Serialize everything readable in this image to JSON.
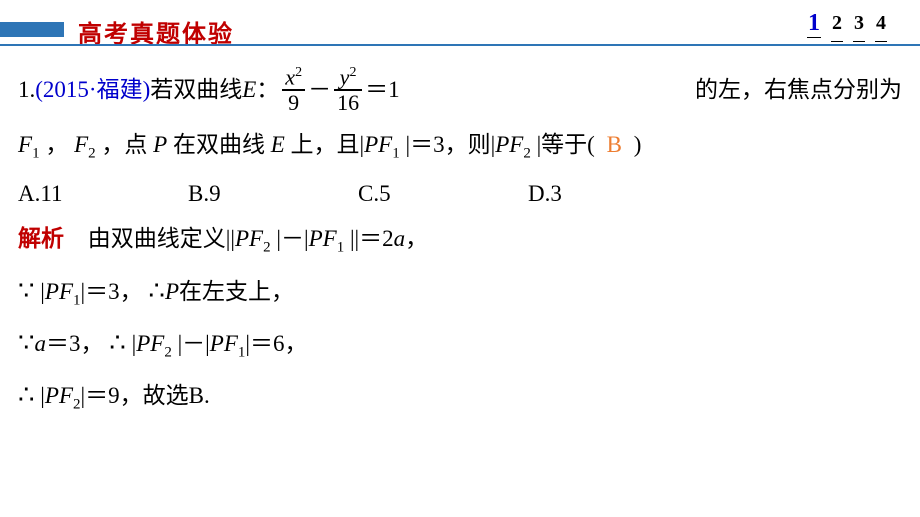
{
  "header": {
    "section_title_chars": [
      "高",
      "考",
      "真",
      "题",
      "体",
      "验"
    ],
    "section_title_color": "#c00000",
    "blue_bar_color": "#2e75b6",
    "underline_color": "#2e75b6",
    "page_numbers": [
      "1",
      "2",
      "3",
      "4"
    ],
    "current_page_index": 0
  },
  "question": {
    "number": "1.",
    "source": "(2015·福建)",
    "prefix_zh": "若双曲线 ",
    "curve_label": "E",
    "colon": "：",
    "frac1_num": "x",
    "frac1_num_sup": "2",
    "frac1_den": "9",
    "minus": "－",
    "frac2_num": "y",
    "frac2_num_sup": "2",
    "frac2_den": "16",
    "eq": "＝1",
    "tail1_part1": " 的左，右焦点分别为",
    "line2a": "F",
    "line2_sub1": "1",
    "line2b": "，",
    "line2c": "F",
    "line2_sub2": "2",
    "line2d": "，点 ",
    "line2_P": "P",
    "line2e": " 在双曲线 ",
    "line2_E": "E",
    "line2f": " 上，且|",
    "line2_PF1_P": "P",
    "line2_PF1_F": "F",
    "line2_PF1_sub": "1",
    "line2g": "|＝3，则|",
    "line2_PF2_P": "P",
    "line2_PF2_F": "F",
    "line2_PF2_sub": "2",
    "line2h": "|等于(",
    "answer_letter": "B",
    "line2i": ")",
    "options": {
      "a": "A.11",
      "b": "B.9",
      "c": "C.5",
      "d": "D.3"
    }
  },
  "solution": {
    "label": "解析",
    "line1a": "由双曲线定义||",
    "l1_P1": "P",
    "l1_F1": "F",
    "l1_sub1": "2",
    "line1b": "|－|",
    "l1_P2": "P",
    "l1_F2": "F",
    "l1_sub2": "1",
    "line1c": "||＝2",
    "l1_a": "a",
    "line1d": "，",
    "l2_because": "∵",
    "l2a": "|",
    "l2_P": "P",
    "l2_F": "F",
    "l2_sub": "1",
    "l2b": "|＝3，",
    "l2_therefore": "∴",
    "l2_P2": "P",
    "l2c": "在左支上，",
    "l3_because": "∵",
    "l3_a": "a",
    "l3a": "＝3，",
    "l3_therefore": "∴",
    "l3b": "|",
    "l3_P1": "P",
    "l3_F1": "F",
    "l3_sub1": "2",
    "l3c": "|－|",
    "l3_P2": "P",
    "l3_F2": "F",
    "l3_sub2": "1",
    "l3d": "|＝6，",
    "l4_therefore": "∴",
    "l4a": "|",
    "l4_P": "P",
    "l4_F": "F",
    "l4_sub": "2",
    "l4b": "|＝9，故选B."
  },
  "colors": {
    "source_blue": "#0000cc",
    "answer_orange": "#ed7d31",
    "solve_red": "#c00000"
  }
}
